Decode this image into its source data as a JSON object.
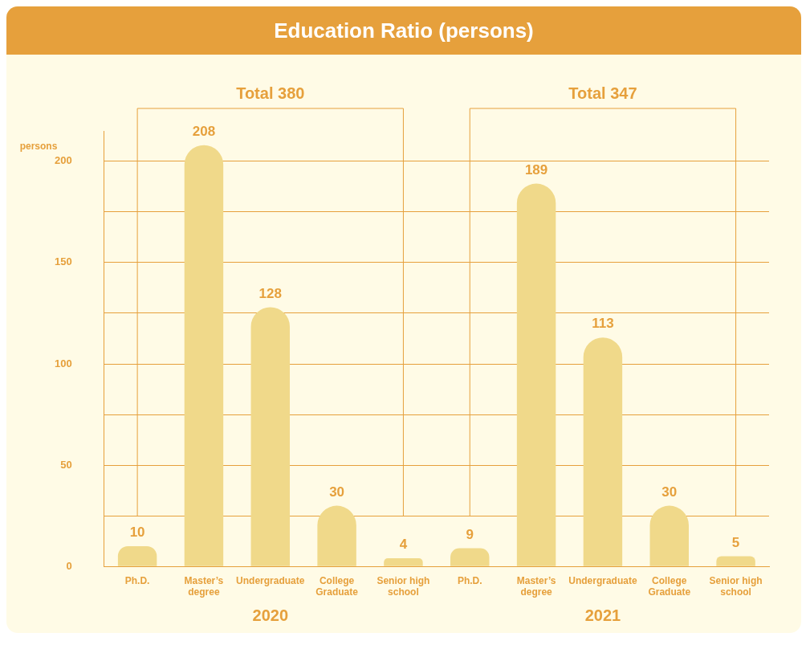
{
  "chart_data": {
    "type": "bar",
    "title": "Education Ratio (persons)",
    "ylabel": "persons",
    "categories": [
      "Ph.D.",
      "Master’s degree",
      "Undergraduate",
      "College Graduate",
      "Senior high school",
      "Ph.D.",
      "Master’s degree",
      "Undergraduate",
      "College Graduate",
      "Senior high school"
    ],
    "values": [
      10,
      208,
      128,
      30,
      4,
      9,
      189,
      113,
      30,
      5
    ],
    "color": "#f0d98a",
    "ylim": [
      0,
      215
    ],
    "yticks": [
      0,
      {
        "value": 25,
        "label": null
      },
      50,
      {
        "value": 75,
        "label": null
      },
      100,
      {
        "value": 125,
        "label": null
      },
      150,
      {
        "value": 175,
        "label": null
      },
      200
    ],
    "grid": "y",
    "data_labels": true,
    "legend": false,
    "annotations": [
      "Total 380",
      "Total 347",
      "2020",
      "2021"
    ]
  }
}
